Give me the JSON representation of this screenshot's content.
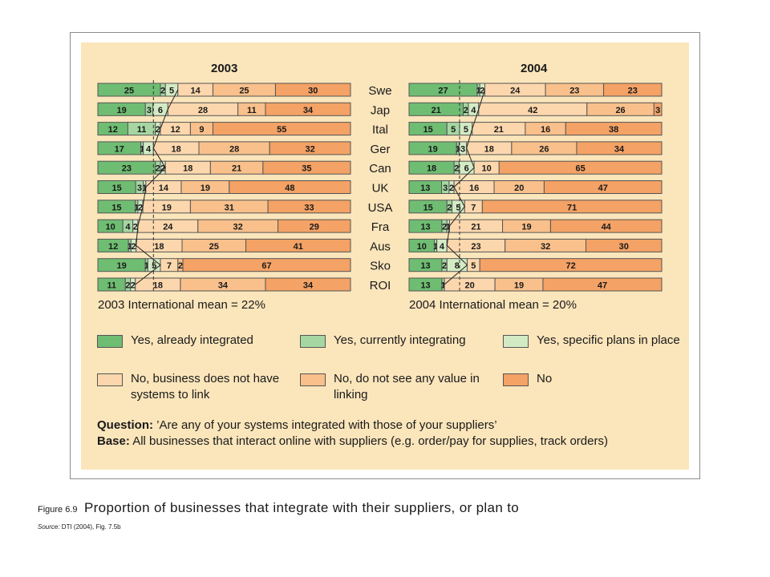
{
  "chart_data": [
    {
      "type": "bar",
      "orientation": "horizontal",
      "stacked": true,
      "title": "2003",
      "categories": [
        "Swe",
        "Jap",
        "Ital",
        "Ger",
        "Can",
        "UK",
        "USA",
        "Fra",
        "Aus",
        "Sko",
        "ROI"
      ],
      "series": [
        {
          "name": "Yes, already integrated",
          "values": [
            25,
            19,
            12,
            17,
            23,
            15,
            15,
            10,
            12,
            19,
            11
          ]
        },
        {
          "name": "Yes, currently integrating",
          "values": [
            2,
            3,
            11,
            1,
            2,
            3,
            1,
            4,
            1,
            1,
            2
          ]
        },
        {
          "name": "Yes, specific plans in place",
          "values": [
            5,
            6,
            2,
            4,
            2,
            1,
            2,
            2,
            2,
            5,
            2
          ]
        },
        {
          "name": "No, business does not have systems to link",
          "values": [
            14,
            28,
            12,
            18,
            18,
            14,
            19,
            24,
            18,
            7,
            18
          ]
        },
        {
          "name": "No, do not see any value in linking",
          "values": [
            25,
            11,
            9,
            28,
            21,
            19,
            31,
            32,
            25,
            2,
            34
          ]
        },
        {
          "name": "No",
          "values": [
            30,
            34,
            55,
            32,
            35,
            48,
            33,
            29,
            41,
            67,
            34
          ]
        }
      ],
      "mean_label": "2003 International mean = 22%"
    },
    {
      "type": "bar",
      "orientation": "horizontal",
      "stacked": true,
      "title": "2004",
      "categories": [
        "Swe",
        "Jap",
        "Ital",
        "Ger",
        "Can",
        "UK",
        "USA",
        "Fra",
        "Aus",
        "Sko",
        "ROI"
      ],
      "series": [
        {
          "name": "Yes, already integrated",
          "values": [
            27,
            21,
            15,
            19,
            18,
            13,
            15,
            13,
            10,
            13,
            13
          ]
        },
        {
          "name": "Yes, currently integrating",
          "values": [
            1,
            2,
            5,
            1,
            2,
            3,
            2,
            2,
            1,
            2,
            1
          ]
        },
        {
          "name": "Yes, specific plans in place",
          "values": [
            2,
            4,
            5,
            3,
            6,
            2,
            5,
            1,
            4,
            8,
            null
          ]
        },
        {
          "name": "No, business does not have systems to link",
          "values": [
            24,
            42,
            21,
            18,
            10,
            16,
            7,
            21,
            23,
            5,
            20
          ]
        },
        {
          "name": "No, do not see any value in linking",
          "values": [
            23,
            26,
            16,
            26,
            null,
            20,
            null,
            19,
            32,
            null,
            19
          ]
        },
        {
          "name": "No",
          "values": [
            23,
            3,
            38,
            34,
            65,
            47,
            71,
            44,
            30,
            72,
            47
          ]
        }
      ],
      "mean_label": "2004 International mean = 20%"
    }
  ],
  "colors": {
    "panel": "#fbe5bb",
    "yes_already": "#6fbd72",
    "yes_currently": "#a6d7a2",
    "yes_plans": "#d3ebc4",
    "no_systems": "#fcd7ad",
    "no_value": "#f9c08b",
    "no": "#f4a265",
    "border": "#555555"
  },
  "legend": [
    {
      "label": "Yes, already integrated",
      "color": "#6fbd72"
    },
    {
      "label": "Yes, currently integrating",
      "color": "#a6d7a2"
    },
    {
      "label": "Yes, specific plans in place",
      "color": "#d3ebc4"
    },
    {
      "label": "No, business does not have systems to link",
      "color": "#fcd7ad"
    },
    {
      "label": "No, do not see any value in linking",
      "color": "#f9c08b"
    },
    {
      "label": "No",
      "color": "#f4a265"
    }
  ],
  "question": {
    "label": "Question:",
    "text": " ’Are any of your systems integrated with those of your suppliers’"
  },
  "base": {
    "label": "Base:",
    "text": " All businesses that interact online with suppliers (e.g. order/pay for supplies, track orders)"
  },
  "caption": {
    "figure": "Figure 6.9",
    "title": "Proportion of businesses that integrate with their suppliers, or plan to",
    "source_label": "Source:",
    "source_text": " DTI (2004), Fig. 7.5b"
  }
}
